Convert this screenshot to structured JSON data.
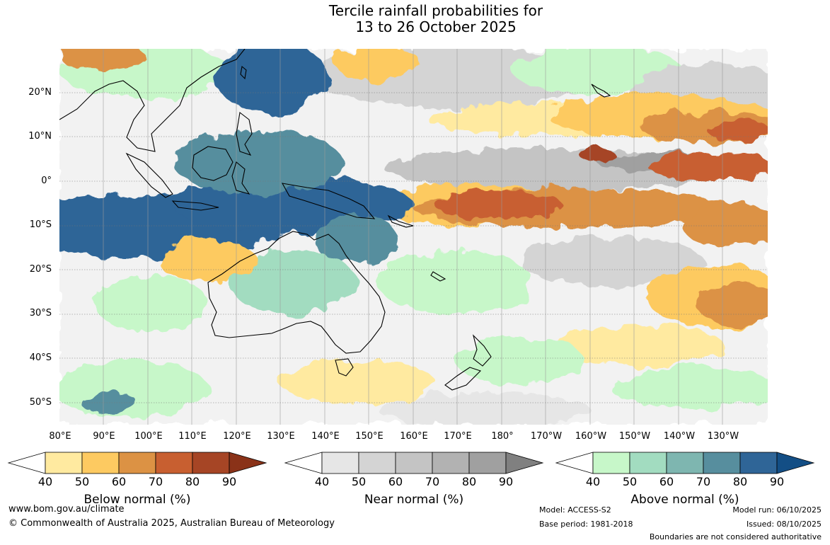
{
  "title": {
    "line1": "Tercile rainfall probabilities for",
    "line2": "13 to 26 October 2025"
  },
  "map": {
    "lat_labels": [
      "20°N",
      "10°N",
      "0°",
      "10°S",
      "20°S",
      "30°S",
      "40°S",
      "50°S"
    ],
    "lon_labels": [
      "80°E",
      "90°E",
      "100°E",
      "110°E",
      "120°E",
      "130°E",
      "140°E",
      "150°E",
      "160°E",
      "170°E",
      "180°",
      "170°W",
      "160°W",
      "150°W",
      "140°W",
      "130°W"
    ],
    "bands": [
      {
        "lat": 20,
        "pattern": "green-gray",
        "note": "mixed"
      },
      {
        "lat": 10,
        "pattern": "orange-east"
      },
      {
        "lat": 0,
        "pattern": "gray-east"
      },
      {
        "lat": -5,
        "pattern": "brown-central"
      },
      {
        "lat": -10,
        "pattern": "blue-west"
      },
      {
        "lat": -25,
        "pattern": "teal-aus"
      },
      {
        "lat": -45,
        "pattern": "mixed-south"
      }
    ]
  },
  "legends": {
    "below": {
      "title": "Below normal (%)",
      "ticks": [
        "40",
        "50",
        "60",
        "70",
        "80",
        "90"
      ],
      "colors": [
        "#ffffff",
        "#ffeaa0",
        "#fdca61",
        "#dc9244",
        "#c85f30",
        "#a64525",
        "#8a3218"
      ]
    },
    "near": {
      "title": "Near normal (%)",
      "ticks": [
        "40",
        "50",
        "60",
        "70",
        "80",
        "90"
      ],
      "colors": [
        "#ffffff",
        "#e6e6e6",
        "#d4d4d4",
        "#c4c4c4",
        "#b2b2b2",
        "#a0a0a0",
        "#808080"
      ]
    },
    "above": {
      "title": "Above normal (%)",
      "ticks": [
        "40",
        "50",
        "60",
        "70",
        "80",
        "90"
      ],
      "colors": [
        "#ffffff",
        "#c7f7c9",
        "#a2dcc0",
        "#7eb6b0",
        "#578e9e",
        "#2f6597",
        "#134e85"
      ]
    }
  },
  "footer": {
    "website": "www.bom.gov.au/climate",
    "copyright": "© Commonwealth of Australia 2025, Australian Bureau of Meteorology",
    "model": "Model: ACCESS-S2",
    "base_period": "Base period: 1981-2018",
    "model_run": "Model run: 06/10/2025",
    "issued": "Issued: 08/10/2025",
    "disclaimer": "Boundaries are not considered authoritative"
  }
}
